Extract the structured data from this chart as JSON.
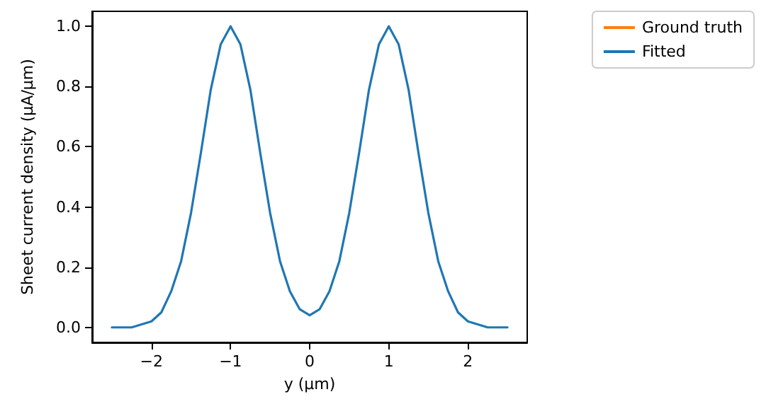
{
  "chart_data": {
    "type": "line",
    "xlabel": "y (µm)",
    "ylabel": "Sheet current density (µA/µm)",
    "x": [
      -2.5,
      -2.375,
      -2.25,
      -2.125,
      -2,
      -1.875,
      -1.75,
      -1.625,
      -1.5,
      -1.375,
      -1.25,
      -1.125,
      -1,
      -0.875,
      -0.75,
      -0.625,
      -0.5,
      -0.375,
      -0.25,
      -0.125,
      0,
      0.125,
      0.25,
      0.375,
      0.5,
      0.625,
      0.75,
      0.875,
      1,
      1.125,
      1.25,
      1.375,
      1.5,
      1.625,
      1.75,
      1.875,
      2,
      2.125,
      2.25,
      2.375,
      2.5
    ],
    "series": [
      {
        "name": "Ground truth",
        "color": "#ff7f0e",
        "values": [
          null,
          null,
          null,
          null,
          null,
          null,
          null,
          null,
          null,
          null,
          null,
          null,
          null,
          null,
          null,
          null,
          null,
          null,
          null,
          null,
          null,
          null,
          null,
          null,
          null,
          null,
          null,
          null,
          null,
          null,
          null,
          null,
          null,
          null,
          null,
          null,
          null,
          null,
          null,
          null,
          null
        ]
      },
      {
        "name": "Fitted",
        "color": "#1f77b4",
        "values": [
          0,
          0,
          0,
          0.01,
          0.02,
          0.05,
          0.12,
          0.22,
          0.38,
          0.58,
          0.79,
          0.94,
          1,
          0.94,
          0.79,
          0.58,
          0.38,
          0.22,
          0.12,
          0.06,
          0.04,
          0.06,
          0.12,
          0.22,
          0.38,
          0.58,
          0.79,
          0.94,
          1,
          0.94,
          0.79,
          0.58,
          0.38,
          0.22,
          0.12,
          0.05,
          0.02,
          0.01,
          0,
          0,
          0
        ]
      }
    ],
    "xlim": [
      -2.75,
      2.75
    ],
    "xticks": [
      -2,
      -1,
      0,
      1,
      2
    ],
    "ylim": [
      -0.05,
      1.05
    ],
    "yticks": [
      {
        "value": 0,
        "label": "0.0"
      },
      0.2,
      0.4,
      0.6,
      0.8,
      {
        "value": 1,
        "label": "1.0"
      }
    ],
    "grid": false,
    "legend": "top right",
    "marker": "none",
    "line_style": "solid"
  }
}
